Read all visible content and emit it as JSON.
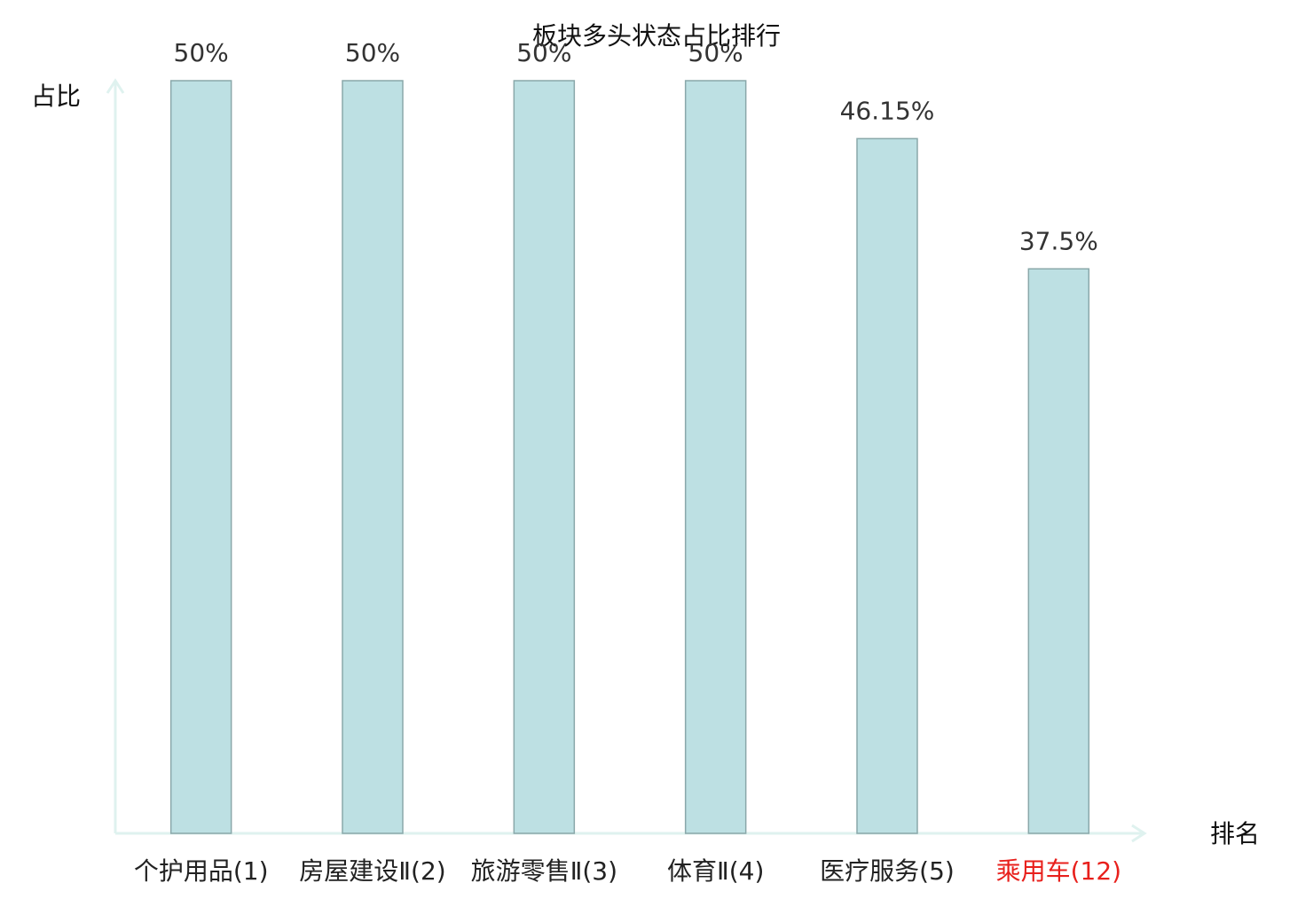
{
  "chart_data": {
    "type": "bar",
    "title": "板块多头状态占比排行",
    "y_label": "占比",
    "x_label": "排名",
    "categories": [
      "个护用品(1)",
      "房屋建设Ⅱ(2)",
      "旅游零售Ⅱ(3)",
      "体育Ⅱ(4)",
      "医疗服务(5)",
      "乘用车(12)"
    ],
    "category_colors": [
      "#222222",
      "#222222",
      "#222222",
      "#222222",
      "#222222",
      "#e8201c"
    ],
    "values": [
      50,
      50,
      50,
      50,
      46.15,
      37.5
    ],
    "value_labels": [
      "50%",
      "50%",
      "50%",
      "50%",
      "46.15%",
      "37.5%"
    ],
    "color": "#bde0e3",
    "edge_color": "#8aa8aa",
    "axis_color": "#dff2ef",
    "ylim": [
      0,
      50
    ]
  }
}
